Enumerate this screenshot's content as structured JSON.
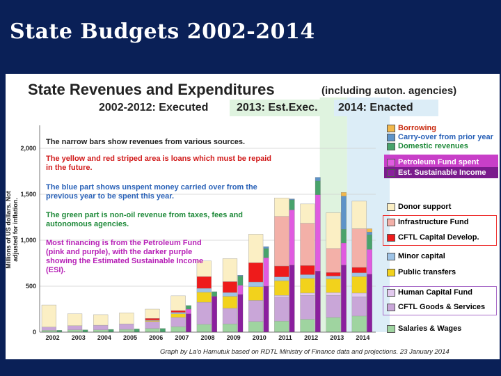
{
  "slide": {
    "title": "State Budgets 2002-2014"
  },
  "credit": "Graph by La'o Hamutuk based on RDTL Ministry of Finance data and projections.  23 January 2014",
  "annotations": [
    "The narrow bars show revenues from various sources.",
    "The yellow and red striped area is loans which must be repaid in the future.",
    "The blue part shows unspent money carried over from the previous year to be spent this year.",
    "The green part is non-oil revenue from taxes, fees and autonomous agencies.",
    "Most financing is from the Petroleum Fund (pink and purple), with the darker purple showing the Estimated Sustainable Income (ESI)."
  ],
  "chart_data": {
    "type": "bar",
    "title": "State Revenues and Expenditures",
    "subtitle_note": "(including auton. agencies)",
    "periods": [
      "2002-2012: Executed",
      "2013: Est.Exec.",
      "2014: Enacted"
    ],
    "ylabel": "Millions of US dollars.   Not adjusted for inflation.",
    "ylim": [
      0,
      2250
    ],
    "yticks": [
      0,
      500,
      1000,
      1500,
      2000
    ],
    "ytick_labels": [
      "0",
      "500",
      "1,000",
      "1,500",
      "2,000"
    ],
    "categories": [
      "2002",
      "2003",
      "2004",
      "2005",
      "2006",
      "2007",
      "2008",
      "2009",
      "2010",
      "2011",
      "2012",
      "2013",
      "2014"
    ],
    "colors": {
      "salaries": "#9fd4a0",
      "goods": "#c9a6d8",
      "human_cap": "#e2c9ee",
      "transfers": "#f2d21c",
      "minor_cap": "#9ec3e6",
      "cftl_cap": "#ee1b1b",
      "infra": "#f3b0a8",
      "donor": "#fbefc4",
      "esi": "#8b1f9e",
      "pf_spent": "#e05be0",
      "domestic": "#48a36b",
      "carry": "#5d93c8",
      "borrowing": "#f2b84b"
    },
    "legend_revenue": [
      {
        "key": "borrowing",
        "label": "Borrowing",
        "color": "#f2b84b",
        "text_color": "#c8290e"
      },
      {
        "key": "carry",
        "label": "Carry-over from prior year",
        "color": "#5d93c8",
        "text_color": "#2a62b8"
      },
      {
        "key": "domestic",
        "label": "Domestic revenues",
        "color": "#48a36b",
        "text_color": "#1f8a3a"
      },
      {
        "key": "pf_spent",
        "label": "Petroleum Fund spent",
        "color": "#e05be0",
        "text_color": "#ffffff"
      },
      {
        "key": "esi",
        "label": "Est. Sustainable Income",
        "color": "#8b1f9e",
        "text_color": "#ffffff"
      }
    ],
    "legend_expenditure": [
      {
        "key": "donor",
        "label": "Donor support",
        "color": "#fbefc4"
      },
      {
        "key": "infra",
        "label": "Infrastructure Fund",
        "color": "#f3b0a8"
      },
      {
        "key": "cftl_cap",
        "label": "CFTL Capital Develop.",
        "color": "#ee1b1b"
      },
      {
        "key": "minor_cap",
        "label": "Minor capital",
        "color": "#9ec3e6"
      },
      {
        "key": "transfers",
        "label": "Public transfers",
        "color": "#f2d21c"
      },
      {
        "key": "human_cap",
        "label": "Human Capital Fund",
        "color": "#e2c9ee"
      },
      {
        "key": "goods",
        "label": "CFTL Goods & Services",
        "color": "#c9a6d8"
      },
      {
        "key": "salaries",
        "label": "Salaries & Wages",
        "color": "#9fd4a0"
      }
    ],
    "expenditure_series": [
      {
        "name": "Salaries & Wages",
        "key": "salaries",
        "values": [
          20,
          25,
          25,
          30,
          40,
          60,
          85,
          90,
          115,
          120,
          140,
          160,
          175
        ]
      },
      {
        "name": "CFTL Goods & Services",
        "key": "goods",
        "values": [
          35,
          45,
          50,
          60,
          75,
          100,
          240,
          170,
          230,
          260,
          260,
          240,
          210
        ]
      },
      {
        "name": "Human Capital Fund",
        "key": "human_cap",
        "values": [
          0,
          0,
          0,
          0,
          0,
          0,
          0,
          0,
          0,
          20,
          25,
          30,
          40
        ]
      },
      {
        "name": "Public transfers",
        "key": "transfers",
        "values": [
          0,
          0,
          0,
          0,
          10,
          40,
          110,
          130,
          150,
          160,
          160,
          150,
          180
        ]
      },
      {
        "name": "Minor capital",
        "key": "minor_cap",
        "values": [
          0,
          0,
          0,
          0,
          5,
          15,
          40,
          40,
          50,
          40,
          40,
          30,
          40
        ]
      },
      {
        "name": "CFTL Capital Develop.",
        "key": "cftl_cap",
        "values": [
          0,
          0,
          0,
          0,
          20,
          20,
          130,
          120,
          210,
          120,
          100,
          40,
          60
        ]
      },
      {
        "name": "Infrastructure Fund",
        "key": "infra",
        "values": [
          0,
          0,
          0,
          0,
          0,
          0,
          0,
          0,
          0,
          540,
          460,
          260,
          420
        ]
      },
      {
        "name": "Donor support",
        "key": "donor",
        "values": [
          240,
          130,
          115,
          120,
          100,
          160,
          170,
          250,
          310,
          200,
          210,
          390,
          300
        ]
      }
    ],
    "revenue_series": [
      {
        "name": "Est. Sustainable Income",
        "key": "esi",
        "values": [
          0,
          0,
          0,
          0,
          0,
          200,
          390,
          410,
          500,
          730,
          665,
          730,
          630
        ]
      },
      {
        "name": "Petroleum Fund spent",
        "key": "pf_spent",
        "values": [
          0,
          0,
          0,
          0,
          0,
          50,
          0,
          100,
          310,
          600,
          830,
          240,
          270
        ]
      },
      {
        "name": "Domestic revenues",
        "key": "domestic",
        "values": [
          20,
          25,
          30,
          35,
          40,
          40,
          50,
          100,
          100,
          110,
          150,
          150,
          160
        ]
      },
      {
        "name": "Carry-over from prior year",
        "key": "carry",
        "values": [
          0,
          0,
          0,
          0,
          0,
          0,
          0,
          10,
          20,
          10,
          40,
          360,
          30
        ]
      },
      {
        "name": "Borrowing",
        "key": "borrowing",
        "values": [
          0,
          0,
          0,
          0,
          0,
          0,
          0,
          0,
          0,
          0,
          0,
          40,
          35
        ]
      }
    ]
  }
}
